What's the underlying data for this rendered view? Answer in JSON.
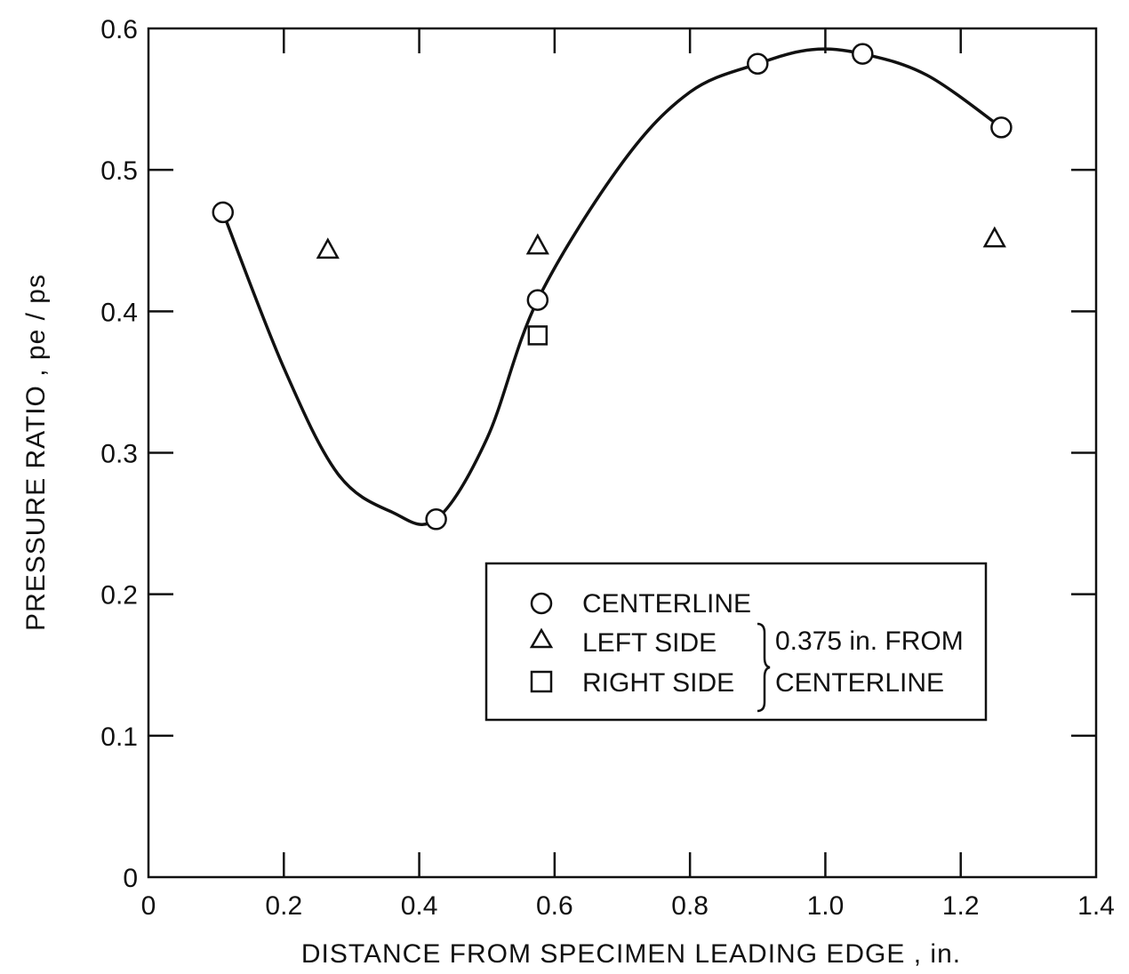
{
  "chart_data": {
    "type": "scatter",
    "title": "",
    "xlabel": "DISTANCE FROM SPECIMEN LEADING EDGE , in.",
    "ylabel": "PRESSURE RATIO , pe / ps",
    "xlim": [
      0,
      1.4
    ],
    "ylim": [
      0,
      0.6
    ],
    "x_ticks": [
      0,
      0.2,
      0.4,
      0.6,
      0.8,
      1.0,
      1.2,
      1.4
    ],
    "x_tick_labels": [
      "0",
      "0.2",
      "0.4",
      "0.6",
      "0.8",
      "1.0",
      "1.2",
      "1.4"
    ],
    "y_ticks": [
      0,
      0.1,
      0.2,
      0.3,
      0.4,
      0.5,
      0.6
    ],
    "y_tick_labels": [
      "0",
      "0.1",
      "0.2",
      "0.3",
      "0.4",
      "0.5",
      "0.6"
    ],
    "grid": false,
    "legend_position": "center-right",
    "legend_group_label": "0.375 in. FROM CENTERLINE",
    "legend_group_lines": [
      "0.375 in. FROM",
      "CENTERLINE"
    ],
    "series": [
      {
        "name": "CENTERLINE",
        "marker": "circle",
        "x": [
          0.11,
          0.425,
          0.575,
          0.9,
          1.055,
          1.26
        ],
        "y": [
          0.47,
          0.253,
          0.408,
          0.575,
          0.582,
          0.53
        ]
      },
      {
        "name": "LEFT SIDE",
        "marker": "triangle",
        "x": [
          0.265,
          0.575,
          1.25
        ],
        "y": [
          0.443,
          0.446,
          0.451
        ]
      },
      {
        "name": "RIGHT SIDE",
        "marker": "square",
        "x": [
          0.575
        ],
        "y": [
          0.383
        ]
      }
    ],
    "fitted_curve": {
      "series": "CENTERLINE",
      "x": [
        0.11,
        0.2,
        0.28,
        0.36,
        0.425,
        0.5,
        0.575,
        0.7,
        0.8,
        0.9,
        0.98,
        1.055,
        1.15,
        1.26
      ],
      "y": [
        0.47,
        0.36,
        0.285,
        0.258,
        0.253,
        0.31,
        0.408,
        0.505,
        0.555,
        0.575,
        0.585,
        0.582,
        0.567,
        0.53
      ]
    }
  }
}
